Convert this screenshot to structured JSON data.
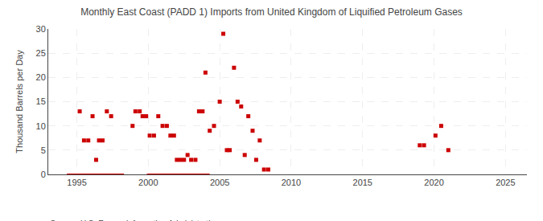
{
  "chart_data": {
    "type": "scatter",
    "title": "Monthly East Coast (PADD 1) Imports from United Kingdom of Liquified Petroleum Gases",
    "ylabel": "Thousand Barrels per Day",
    "source": "Source: U.S. Energy Information Administration",
    "color": "#cc0000",
    "marker": "square",
    "grid": true,
    "xlim": [
      1993.0,
      2026.5
    ],
    "ylim": [
      0,
      30
    ],
    "xticks": [
      1995,
      2000,
      2005,
      2010,
      2015,
      2020,
      2025
    ],
    "yticks": [
      0,
      5,
      10,
      15,
      20,
      25,
      30
    ],
    "x": [
      1995.2,
      1995.5,
      1995.8,
      1996.1,
      1996.35,
      1996.55,
      1996.8,
      1997.1,
      1997.4,
      1998.9,
      1999.1,
      1999.4,
      1999.6,
      1999.85,
      2000.1,
      2000.4,
      2000.7,
      2001.0,
      2001.3,
      2001.55,
      2001.8,
      2002.0,
      2002.25,
      2002.5,
      2002.75,
      2003.0,
      2003.3,
      2003.55,
      2003.8,
      2004.0,
      2004.3,
      2004.6,
      2005.0,
      2005.25,
      2005.5,
      2005.7,
      2006.0,
      2006.25,
      2006.5,
      2006.75,
      2007.0,
      2007.3,
      2007.55,
      2007.8,
      2008.1,
      2008.4,
      2019.0,
      2019.3,
      2020.1,
      2020.5,
      2021.0
    ],
    "values": [
      13,
      7,
      7,
      12,
      3,
      7,
      7,
      13,
      12,
      10,
      13,
      13,
      12,
      12,
      8,
      8,
      12,
      10,
      10,
      8,
      8,
      3,
      3,
      3,
      4,
      3,
      3,
      13,
      13,
      21,
      9,
      10,
      15,
      29,
      5,
      5,
      22,
      15,
      14,
      4,
      12,
      9,
      3,
      7,
      1,
      1,
      6,
      6,
      8,
      10,
      5
    ],
    "zero_segments": [
      [
        1994.3,
        1998.3
      ],
      [
        1999.9,
        2004.3
      ]
    ]
  }
}
